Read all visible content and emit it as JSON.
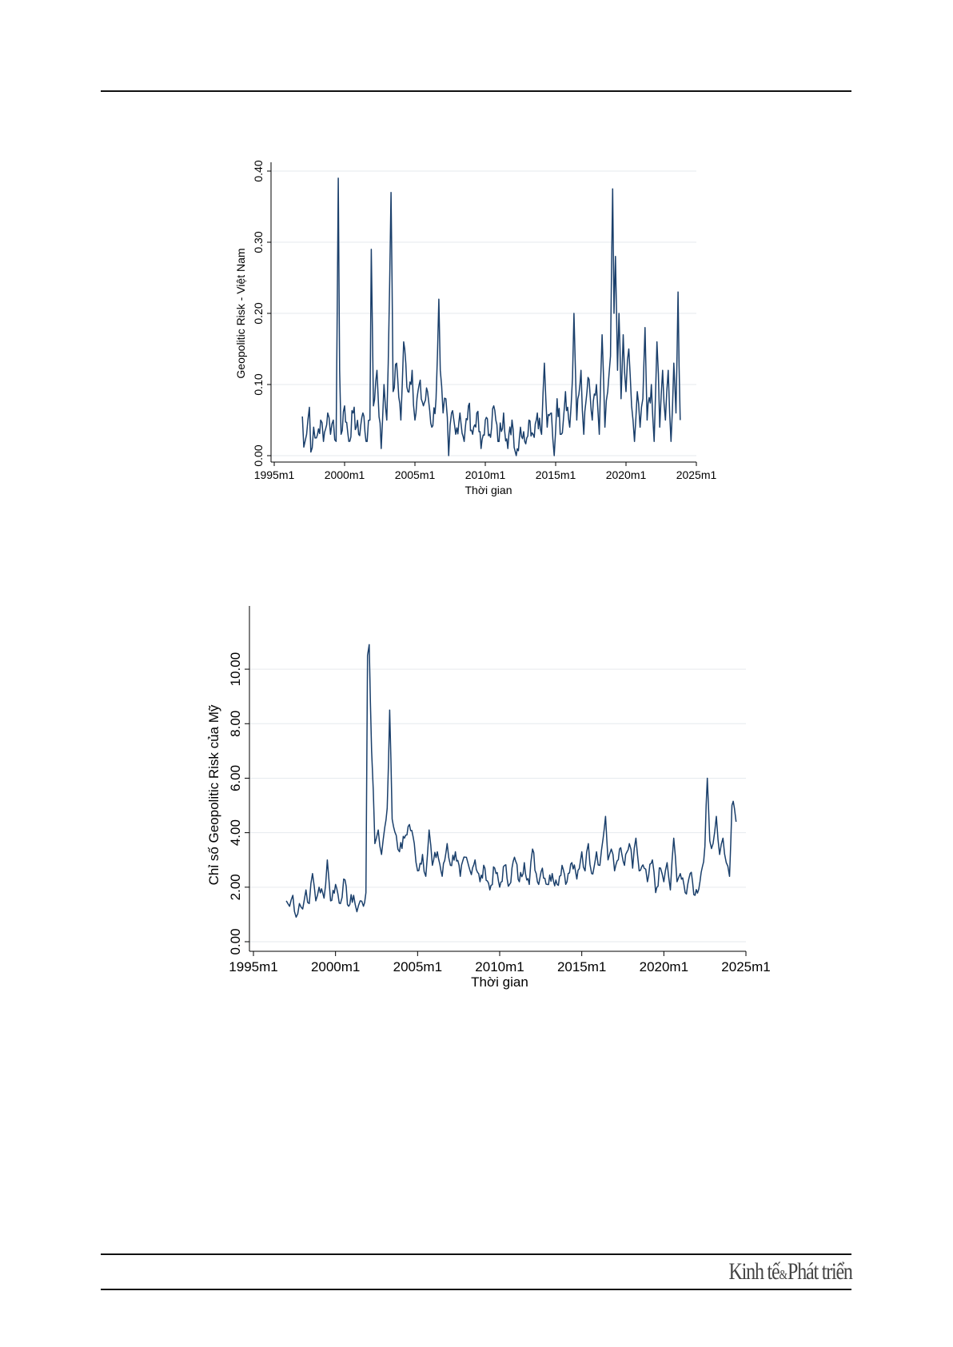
{
  "brand": {
    "part1": "Kinh tế",
    "amp": "&",
    "part2": "Phát triển"
  },
  "chart_data": [
    {
      "type": "line",
      "ylabel": "Geopolitic Risk - Việt Nam",
      "xlabel": "Thời gian",
      "xlim": [
        1995.0,
        2025.0
      ],
      "ylim": [
        0.0,
        0.4
      ],
      "x_ticks": [
        "1995m1",
        "2000m1",
        "2005m1",
        "2010m1",
        "2015m1",
        "2020m1",
        "2025m1"
      ],
      "y_ticks": [
        "0.00",
        "0.10",
        "0.20",
        "0.30",
        "0.40"
      ],
      "grid": true,
      "series": [
        {
          "x_start": "1997m1",
          "color": "#1a3f6b",
          "anchors": [
            [
              "1997.0",
              0.055
            ],
            [
              "1997.1",
              0.012
            ],
            [
              "1997.3",
              0.03
            ],
            [
              "1997.5",
              0.068
            ],
            [
              "1997.6",
              0.005
            ],
            [
              "1997.8",
              0.04
            ],
            [
              "1998.0",
              0.025
            ],
            [
              "1998.3",
              0.05
            ],
            [
              "1998.5",
              0.02
            ],
            [
              "1998.8",
              0.06
            ],
            [
              "1999.0",
              0.03
            ],
            [
              "1999.2",
              0.05
            ],
            [
              "1999.4",
              0.02
            ],
            [
              "1999.55",
              0.39
            ],
            [
              "1999.65",
              0.12
            ],
            [
              "1999.75",
              0.03
            ],
            [
              "2000.0",
              0.07
            ],
            [
              "2000.3",
              0.02
            ],
            [
              "2000.6",
              0.06
            ],
            [
              "2001.0",
              0.03
            ],
            [
              "2001.3",
              0.06
            ],
            [
              "2001.6",
              0.02
            ],
            [
              "2001.8",
              0.05
            ],
            [
              "2001.9",
              0.29
            ],
            [
              "2002.05",
              0.07
            ],
            [
              "2002.3",
              0.12
            ],
            [
              "2002.6",
              0.01
            ],
            [
              "2002.8",
              0.1
            ],
            [
              "2003.0",
              0.05
            ],
            [
              "2003.1",
              0.13
            ],
            [
              "2003.3",
              0.37
            ],
            [
              "2003.45",
              0.09
            ],
            [
              "2003.7",
              0.13
            ],
            [
              "2004.0",
              0.05
            ],
            [
              "2004.2",
              0.16
            ],
            [
              "2004.5",
              0.09
            ],
            [
              "2004.8",
              0.12
            ],
            [
              "2005.0",
              0.05
            ],
            [
              "2005.3",
              0.1
            ],
            [
              "2005.6",
              0.07
            ],
            [
              "2005.9",
              0.09
            ],
            [
              "2006.2",
              0.04
            ],
            [
              "2006.5",
              0.08
            ],
            [
              "2006.7",
              0.22
            ],
            [
              "2006.8",
              0.12
            ],
            [
              "2007.0",
              0.06
            ],
            [
              "2007.2",
              0.08
            ],
            [
              "2007.4",
              0.0
            ],
            [
              "2007.6",
              0.06
            ],
            [
              "2007.9",
              0.03
            ],
            [
              "2008.2",
              0.06
            ],
            [
              "2008.5",
              0.02
            ],
            [
              "2008.8",
              0.07
            ],
            [
              "2009.1",
              0.03
            ],
            [
              "2009.4",
              0.06
            ],
            [
              "2009.7",
              0.01
            ],
            [
              "2010.0",
              0.05
            ],
            [
              "2010.3",
              0.03
            ],
            [
              "2010.6",
              0.07
            ],
            [
              "2010.9",
              0.02
            ],
            [
              "2011.3",
              0.06
            ],
            [
              "2011.6",
              0.01
            ],
            [
              "2011.9",
              0.05
            ],
            [
              "2012.2",
              0.0
            ],
            [
              "2012.5",
              0.04
            ],
            [
              "2012.8",
              0.02
            ],
            [
              "2013.1",
              0.05
            ],
            [
              "2013.4",
              0.03
            ],
            [
              "2013.7",
              0.06
            ],
            [
              "2014.0",
              0.03
            ],
            [
              "2014.2",
              0.13
            ],
            [
              "2014.4",
              0.04
            ],
            [
              "2014.7",
              0.06
            ],
            [
              "2014.9",
              0.0
            ],
            [
              "2015.1",
              0.08
            ],
            [
              "2015.4",
              0.03
            ],
            [
              "2015.7",
              0.09
            ],
            [
              "2016.0",
              0.04
            ],
            [
              "2016.2",
              0.11
            ],
            [
              "2016.3",
              0.2
            ],
            [
              "2016.5",
              0.05
            ],
            [
              "2016.8",
              0.12
            ],
            [
              "2017.0",
              0.03
            ],
            [
              "2017.3",
              0.11
            ],
            [
              "2017.6",
              0.05
            ],
            [
              "2017.9",
              0.1
            ],
            [
              "2018.1",
              0.03
            ],
            [
              "2018.3",
              0.17
            ],
            [
              "2018.5",
              0.04
            ],
            [
              "2018.7",
              0.09
            ],
            [
              "2018.9",
              0.14
            ],
            [
              "2019.05",
              0.375
            ],
            [
              "2019.15",
              0.2
            ],
            [
              "2019.25",
              0.28
            ],
            [
              "2019.4",
              0.12
            ],
            [
              "2019.5",
              0.2
            ],
            [
              "2019.65",
              0.08
            ],
            [
              "2019.8",
              0.17
            ],
            [
              "2020.0",
              0.09
            ],
            [
              "2020.2",
              0.15
            ],
            [
              "2020.4",
              0.07
            ],
            [
              "2020.6",
              0.02
            ],
            [
              "2020.8",
              0.09
            ],
            [
              "2021.0",
              0.04
            ],
            [
              "2021.2",
              0.08
            ],
            [
              "2021.35",
              0.18
            ],
            [
              "2021.5",
              0.05
            ],
            [
              "2021.8",
              0.1
            ],
            [
              "2022.0",
              0.02
            ],
            [
              "2022.2",
              0.16
            ],
            [
              "2022.4",
              0.04
            ],
            [
              "2022.6",
              0.12
            ],
            [
              "2022.8",
              0.05
            ],
            [
              "2023.0",
              0.12
            ],
            [
              "2023.2",
              0.02
            ],
            [
              "2023.4",
              0.13
            ],
            [
              "2023.55",
              0.06
            ],
            [
              "2023.7",
              0.23
            ],
            [
              "2023.85",
              0.05
            ]
          ]
        }
      ]
    },
    {
      "type": "line",
      "ylabel": "Chỉ số Geopolitic Risk của Mỹ",
      "xlabel": "Thời gian",
      "xlim": [
        1995.0,
        2025.0
      ],
      "ylim": [
        0.0,
        11.0
      ],
      "x_ticks": [
        "1995m1",
        "2000m1",
        "2005m1",
        "2010m1",
        "2015m1",
        "2020m1",
        "2025m1"
      ],
      "y_ticks": [
        "0.00",
        "2.00",
        "4.00",
        "6.00",
        "8.00",
        "10.00"
      ],
      "grid": true,
      "series": [
        {
          "x_start": "1997m1",
          "color": "#1a3f6b",
          "anchors": [
            [
              "1997.0",
              1.5
            ],
            [
              "1997.2",
              1.3
            ],
            [
              "1997.4",
              1.7
            ],
            [
              "1997.6",
              0.9
            ],
            [
              "1997.8",
              1.4
            ],
            [
              "1998.0",
              1.2
            ],
            [
              "1998.2",
              1.9
            ],
            [
              "1998.4",
              1.4
            ],
            [
              "1998.6",
              2.5
            ],
            [
              "1998.8",
              1.5
            ],
            [
              "1999.0",
              2.0
            ],
            [
              "1999.3",
              1.6
            ],
            [
              "1999.5",
              3.0
            ],
            [
              "1999.7",
              1.5
            ],
            [
              "2000.0",
              2.1
            ],
            [
              "2000.3",
              1.4
            ],
            [
              "2000.5",
              2.3
            ],
            [
              "2000.8",
              1.3
            ],
            [
              "2001.1",
              1.7
            ],
            [
              "2001.3",
              1.1
            ],
            [
              "2001.5",
              1.5
            ],
            [
              "2001.7",
              1.3
            ],
            [
              "2001.85",
              1.8
            ],
            [
              "2001.95",
              10.5
            ],
            [
              "2002.05",
              10.9
            ],
            [
              "2002.2",
              7.0
            ],
            [
              "2002.4",
              3.6
            ],
            [
              "2002.6",
              4.1
            ],
            [
              "2002.8",
              3.2
            ],
            [
              "2003.0",
              4.2
            ],
            [
              "2003.15",
              4.9
            ],
            [
              "2003.3",
              8.5
            ],
            [
              "2003.45",
              4.5
            ],
            [
              "2003.7",
              3.9
            ],
            [
              "2003.9",
              3.3
            ],
            [
              "2004.2",
              3.8
            ],
            [
              "2004.5",
              4.3
            ],
            [
              "2004.8",
              3.6
            ],
            [
              "2005.0",
              2.6
            ],
            [
              "2005.3",
              3.2
            ],
            [
              "2005.5",
              2.4
            ],
            [
              "2005.7",
              4.1
            ],
            [
              "2005.9",
              2.8
            ],
            [
              "2006.2",
              3.3
            ],
            [
              "2006.5",
              2.4
            ],
            [
              "2006.8",
              3.6
            ],
            [
              "2007.0",
              2.8
            ],
            [
              "2007.3",
              3.3
            ],
            [
              "2007.6",
              2.4
            ],
            [
              "2007.9",
              3.1
            ],
            [
              "2008.2",
              2.6
            ],
            [
              "2008.5",
              3.0
            ],
            [
              "2008.8",
              2.2
            ],
            [
              "2009.1",
              2.7
            ],
            [
              "2009.4",
              1.9
            ],
            [
              "2009.7",
              2.7
            ],
            [
              "2010.0",
              2.0
            ],
            [
              "2010.3",
              2.8
            ],
            [
              "2010.6",
              2.1
            ],
            [
              "2010.9",
              3.1
            ],
            [
              "2011.2",
              2.2
            ],
            [
              "2011.5",
              2.9
            ],
            [
              "2011.8",
              2.1
            ],
            [
              "2012.0",
              3.4
            ],
            [
              "2012.3",
              2.2
            ],
            [
              "2012.6",
              2.7
            ],
            [
              "2012.9",
              2.1
            ],
            [
              "2013.2",
              2.5
            ],
            [
              "2013.5",
              2.1
            ],
            [
              "2013.8",
              2.8
            ],
            [
              "2014.1",
              2.2
            ],
            [
              "2014.4",
              2.9
            ],
            [
              "2014.7",
              2.3
            ],
            [
              "2015.0",
              3.3
            ],
            [
              "2015.2",
              2.6
            ],
            [
              "2015.4",
              3.6
            ],
            [
              "2015.6",
              2.5
            ],
            [
              "2015.9",
              3.3
            ],
            [
              "2016.1",
              2.8
            ],
            [
              "2016.3",
              3.8
            ],
            [
              "2016.45",
              4.6
            ],
            [
              "2016.6",
              3.0
            ],
            [
              "2016.8",
              3.4
            ],
            [
              "2017.0",
              2.6
            ],
            [
              "2017.3",
              3.4
            ],
            [
              "2017.6",
              2.8
            ],
            [
              "2017.9",
              3.6
            ],
            [
              "2018.1",
              2.7
            ],
            [
              "2018.3",
              3.8
            ],
            [
              "2018.5",
              2.6
            ],
            [
              "2018.8",
              2.7
            ],
            [
              "2019.0",
              2.2
            ],
            [
              "2019.3",
              3.0
            ],
            [
              "2019.5",
              1.8
            ],
            [
              "2019.8",
              2.7
            ],
            [
              "2020.0",
              2.2
            ],
            [
              "2020.2",
              2.9
            ],
            [
              "2020.4",
              1.9
            ],
            [
              "2020.6",
              3.8
            ],
            [
              "2020.8",
              2.2
            ],
            [
              "2021.0",
              2.5
            ],
            [
              "2021.3",
              1.8
            ],
            [
              "2021.6",
              2.5
            ],
            [
              "2021.9",
              1.7
            ],
            [
              "2022.2",
              2.2
            ],
            [
              "2022.5",
              3.5
            ],
            [
              "2022.65",
              6.0
            ],
            [
              "2022.8",
              3.7
            ],
            [
              "2023.0",
              3.6
            ],
            [
              "2023.2",
              4.6
            ],
            [
              "2023.4",
              3.2
            ],
            [
              "2023.6",
              3.8
            ],
            [
              "2023.8",
              2.9
            ],
            [
              "2024.0",
              2.4
            ],
            [
              "2024.15",
              5.0
            ],
            [
              "2024.3",
              4.9
            ],
            [
              "2024.4",
              4.4
            ]
          ]
        }
      ]
    }
  ]
}
